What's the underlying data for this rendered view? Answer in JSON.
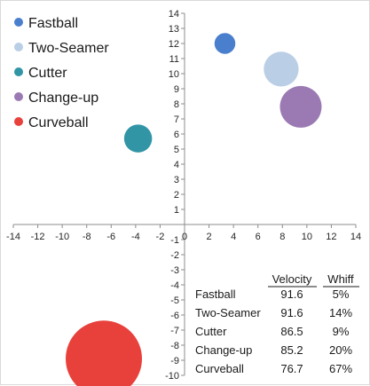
{
  "chart_data": {
    "type": "bubble",
    "xlim": [
      -14,
      14
    ],
    "ylim": [
      -10,
      14
    ],
    "x_ticks": [
      -14,
      -12,
      -10,
      -8,
      -6,
      -4,
      -2,
      0,
      2,
      4,
      6,
      8,
      10,
      12,
      14
    ],
    "y_ticks": [
      -10,
      -9,
      -8,
      -7,
      -6,
      -5,
      -4,
      -3,
      -2,
      -1,
      0,
      1,
      2,
      3,
      4,
      5,
      6,
      7,
      8,
      9,
      10,
      11,
      12,
      13,
      14
    ],
    "series": [
      {
        "name": "Fastball",
        "x": 3.3,
        "y": 12.0,
        "size": 5,
        "color": "#4a7fce"
      },
      {
        "name": "Two-Seamer",
        "x": 7.9,
        "y": 10.3,
        "size": 14,
        "color": "#bacee6"
      },
      {
        "name": "Cutter",
        "x": -3.8,
        "y": 5.7,
        "size": 9,
        "color": "#3195a6"
      },
      {
        "name": "Change-up",
        "x": 9.5,
        "y": 7.8,
        "size": 20,
        "color": "#9b7ab3"
      },
      {
        "name": "Curveball",
        "x": -6.6,
        "y": -8.9,
        "size": 67,
        "color": "#e8413c"
      }
    ],
    "legend_position": "top-left",
    "grid": false,
    "table": {
      "headers": [
        "Velocity",
        "Whiff"
      ],
      "rows": [
        [
          "Fastball",
          "91.6",
          "5%"
        ],
        [
          "Two-Seamer",
          "91.6",
          "14%"
        ],
        [
          "Cutter",
          "86.5",
          "9%"
        ],
        [
          "Change-up",
          "85.2",
          "20%"
        ],
        [
          "Curveball",
          "76.7",
          "67%"
        ]
      ]
    }
  }
}
